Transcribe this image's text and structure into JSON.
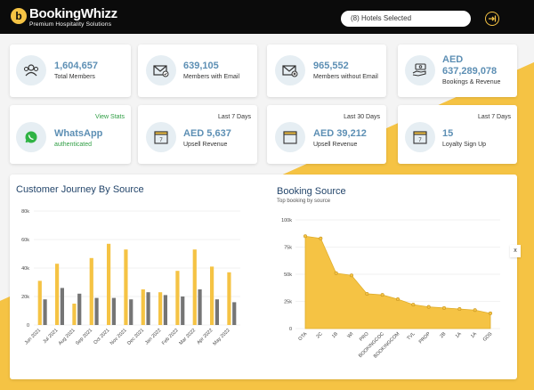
{
  "header": {
    "brand": "BookingWhizz",
    "tagline": "Premium Hospitality Solutions",
    "logo_letter": "b",
    "hotel_selector": "(8) Hotels Selected",
    "accent": "#f5c344"
  },
  "stats_row1": [
    {
      "value": "1,604,657",
      "label": "Total Members",
      "icon": "users-icon"
    },
    {
      "value": "639,105",
      "label": "Members with Email",
      "icon": "email-check-icon"
    },
    {
      "value": "965,552",
      "label": "Members without Email",
      "icon": "email-x-icon"
    },
    {
      "value": "AED\n637,289,078",
      "currency": "AED",
      "amount": "637,289,078",
      "label": "Bookings & Revenue",
      "icon": "wallet-hand-icon"
    }
  ],
  "stats_row2": [
    {
      "value": "WhatsApp",
      "label": "authenticated",
      "corner": "View Stats",
      "icon": "whatsapp-icon"
    },
    {
      "value": "AED 5,637",
      "label": "Upsell Revenue",
      "corner": "Last 7 Days",
      "icon": "calendar-icon"
    },
    {
      "value": "AED 39,212",
      "label": "Upsell Revenue",
      "corner": "Last 30 Days",
      "icon": "calendar-icon"
    },
    {
      "value": "15",
      "label": "Loyalty Sign Up",
      "corner": "Last 7 Days",
      "icon": "calendar-icon"
    }
  ],
  "close_label": "x",
  "chart_data": [
    {
      "type": "bar",
      "title": "Customer Journey By Source",
      "categories": [
        "Jun 2021",
        "Jul 2021",
        "Aug 2021",
        "Sep 2021",
        "Oct 2021",
        "Nov 2021",
        "Dec 2021",
        "Jan 2022",
        "Feb 2022",
        "Mar 2022",
        "Apr 2022",
        "May 2022"
      ],
      "series": [
        {
          "color": "#f5c344",
          "values": [
            31000,
            43000,
            15000,
            47000,
            57000,
            53000,
            25000,
            23000,
            38000,
            53000,
            41000,
            37000
          ]
        },
        {
          "color": "#757575",
          "values": [
            18000,
            26000,
            22000,
            19000,
            19000,
            18000,
            23000,
            21000,
            20000,
            25000,
            18000,
            16000
          ]
        }
      ],
      "yticks": [
        "0",
        "20k",
        "40k",
        "60k",
        "80k"
      ],
      "ylim": [
        0,
        80000
      ],
      "grid": true
    },
    {
      "type": "area",
      "title": "Booking Source",
      "subtitle": "Top booking by source",
      "categories": [
        "OTA",
        "2C",
        "1B",
        "WI",
        "PRO",
        "BOOKINGCOC",
        "BOOKINGCOM",
        "TVL",
        "PROP",
        "2B",
        "1A",
        "1A",
        "GDS"
      ],
      "values": [
        85000,
        83000,
        51000,
        49000,
        32000,
        31000,
        27000,
        22000,
        20000,
        19000,
        18000,
        17000,
        14000
      ],
      "color": "#f5c344",
      "yticks": [
        "0",
        "25k",
        "50k",
        "75k",
        "100k"
      ],
      "ylim": [
        0,
        100000
      ],
      "grid": true
    }
  ]
}
